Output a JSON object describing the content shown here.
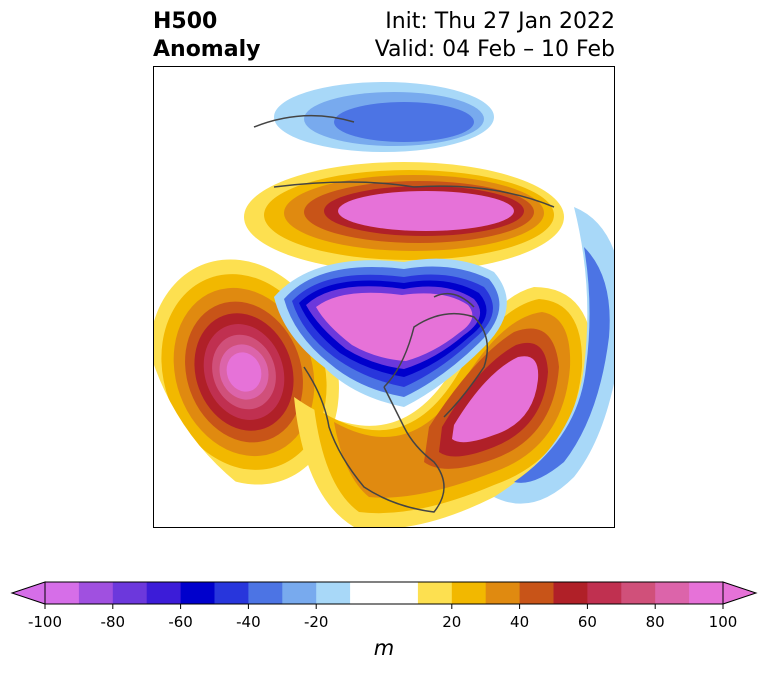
{
  "header": {
    "left_line1": "H500",
    "left_line2": "Anomaly",
    "right_line1": "Init: Thu 27 Jan 2022",
    "right_line2": "Valid: 04 Feb – 10 Feb"
  },
  "map": {
    "projection": "north-polar-stereographic",
    "field": "500 hPa geopotential height anomaly",
    "features": [
      {
        "name": "positive-anomaly-north-pacific",
        "sign": "positive",
        "peak": 100
      },
      {
        "name": "negative-anomaly-arctic-canada-greenland",
        "sign": "negative",
        "peak": -100
      },
      {
        "name": "positive-anomaly-north-atlantic",
        "sign": "positive",
        "peak": 100
      },
      {
        "name": "positive-anomaly-siberia",
        "sign": "positive",
        "peak": 100
      },
      {
        "name": "negative-anomaly-central-asia",
        "sign": "negative",
        "peak": -60
      }
    ]
  },
  "colorbar": {
    "units": "m",
    "min": -100,
    "max": 100,
    "step": 10,
    "extend": "both",
    "ticks": [
      "-100",
      "-80",
      "-60",
      "-40",
      "-20",
      "20",
      "40",
      "60",
      "80",
      "100"
    ],
    "tick_values": [
      -100,
      -80,
      -60,
      -40,
      -20,
      20,
      40,
      60,
      80,
      100
    ],
    "colors": [
      "#d66ee8",
      "#a050e0",
      "#6c38dc",
      "#3c1cd8",
      "#0000cc",
      "#2836dc",
      "#4c74e4",
      "#78aaee",
      "#a8d8f8",
      "#ffffff",
      "#ffffff",
      "#fde050",
      "#f2b800",
      "#e08a10",
      "#c85418",
      "#b02028",
      "#c03050",
      "#d0507a",
      "#dc64aa",
      "#e672d8"
    ],
    "under_color": "#d66ee8",
    "over_color": "#e672d8"
  }
}
